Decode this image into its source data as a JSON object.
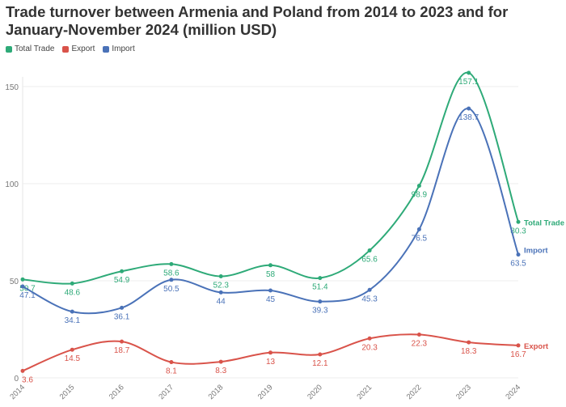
{
  "chart_data": {
    "type": "line",
    "title": "Trade turnover between Armenia and Poland from 2014 to 2023 and for January-November 2024 (million USD)",
    "x": [
      "2014",
      "2015",
      "2016",
      "2017",
      "2018",
      "2019",
      "2020",
      "2021",
      "2022",
      "2023",
      "2024"
    ],
    "ylim": [
      0,
      160
    ],
    "yticks": [
      0,
      50,
      100,
      150
    ],
    "grid": true,
    "legend_position": "top-left",
    "series": [
      {
        "name": "Total Trade",
        "color": "#2eaa78",
        "values": [
          50.7,
          48.6,
          54.9,
          58.6,
          52.3,
          58,
          51.4,
          65.6,
          98.9,
          157.1,
          80.3
        ]
      },
      {
        "name": "Export",
        "color": "#d9534a",
        "values": [
          3.6,
          14.5,
          18.7,
          8.1,
          8.3,
          13,
          12.1,
          20.3,
          22.3,
          18.3,
          16.7
        ]
      },
      {
        "name": "Import",
        "color": "#4a72b8",
        "values": [
          47.1,
          34.1,
          36.1,
          50.5,
          44,
          45,
          39.3,
          45.3,
          76.5,
          138.7,
          63.5
        ]
      }
    ]
  }
}
